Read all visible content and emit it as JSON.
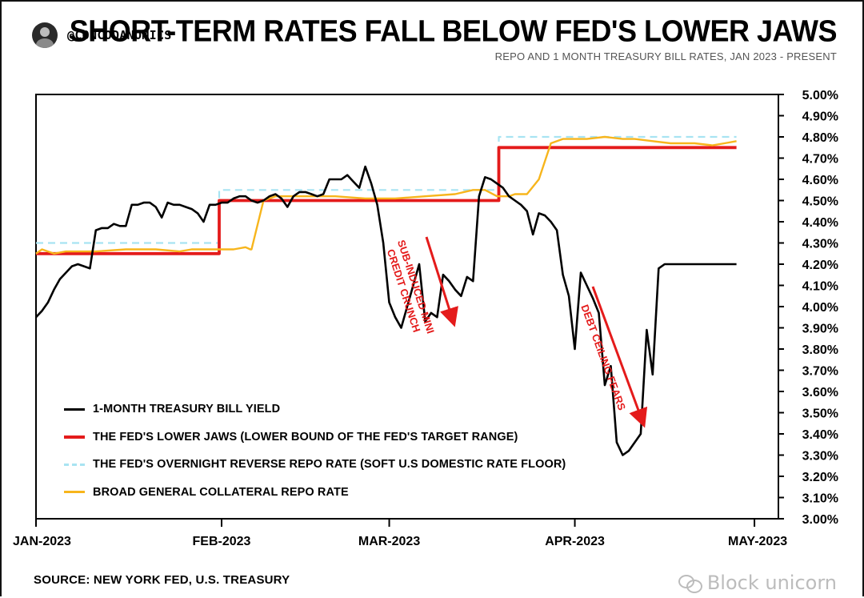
{
  "header": {
    "handle": "@CONCODANOMICS",
    "title": "SHORT-TERM RATES FALL BELOW FED'S LOWER JAWS",
    "subtitle": "REPO AND 1 MONTH TREASURY BILL RATES, JAN 2023 - PRESENT"
  },
  "footer": {
    "source": "SOURCE: NEW YORK FED, U.S. TREASURY",
    "watermark": "Block unicorn"
  },
  "chart_data": {
    "type": "line",
    "title": "SHORT-TERM RATES FALL BELOW FED'S LOWER JAWS",
    "subtitle": "REPO AND 1 MONTH TREASURY BILL RATES, JAN 2023 - PRESENT",
    "x_ticks": [
      {
        "label": "JAN-2023",
        "day": 0
      },
      {
        "label": "FEB-2023",
        "day": 31
      },
      {
        "label": "MAR-2023",
        "day": 59
      },
      {
        "label": "APR-2023",
        "day": 90
      },
      {
        "label": "MAY-2023",
        "day": 120
      }
    ],
    "xlim": [
      0,
      124
    ],
    "y_ticks": [
      "5.00%",
      "4.90%",
      "4.80%",
      "4.70%",
      "4.60%",
      "4.50%",
      "4.40%",
      "4.30%",
      "4.20%",
      "4.10%",
      "4.00%",
      "3.90%",
      "3.80%",
      "3.70%",
      "3.60%",
      "3.50%",
      "3.40%",
      "3.30%",
      "3.20%",
      "3.10%",
      "3.00%"
    ],
    "ylim": [
      3.0,
      5.0
    ],
    "y_axis_side": "right",
    "legend_position": "bottom-left",
    "series": [
      {
        "name": "1-MONTH TREASURY BILL YIELD",
        "color": "#000000",
        "style": "solid",
        "x": [
          0,
          1,
          2,
          3,
          4,
          5,
          6,
          7,
          8,
          9,
          10,
          11,
          12,
          13,
          14,
          15,
          16,
          17,
          18,
          19,
          20,
          21,
          22,
          23,
          24,
          25,
          26,
          27,
          28,
          29,
          30,
          31,
          32,
          33,
          34,
          35,
          36,
          37,
          38,
          39,
          40,
          41,
          42,
          43,
          44,
          45,
          46,
          47,
          48,
          49,
          50,
          51,
          52,
          53,
          54,
          55,
          56,
          57,
          58,
          59,
          60,
          61,
          62,
          63,
          64,
          65,
          66,
          67,
          68,
          69,
          70,
          71,
          72,
          73,
          74,
          75,
          76,
          77,
          78,
          79,
          80,
          81,
          82,
          83,
          84,
          85,
          86,
          87,
          88,
          89,
          90,
          91,
          92,
          93,
          94,
          95,
          96,
          97,
          98,
          99,
          100,
          101,
          102,
          103,
          104,
          105,
          106,
          107,
          108,
          109,
          110,
          111,
          112,
          113,
          114,
          115,
          116,
          117
        ],
        "values": [
          3.95,
          3.98,
          4.02,
          4.08,
          4.13,
          4.16,
          4.19,
          4.2,
          4.19,
          4.18,
          4.36,
          4.37,
          4.37,
          4.39,
          4.38,
          4.38,
          4.48,
          4.48,
          4.49,
          4.49,
          4.47,
          4.42,
          4.49,
          4.48,
          4.48,
          4.47,
          4.46,
          4.44,
          4.4,
          4.48,
          4.48,
          4.49,
          4.49,
          4.51,
          4.52,
          4.52,
          4.5,
          4.49,
          4.5,
          4.52,
          4.53,
          4.51,
          4.47,
          4.52,
          4.54,
          4.54,
          4.53,
          4.52,
          4.53,
          4.6,
          4.6,
          4.6,
          4.62,
          4.59,
          4.56,
          4.66,
          4.58,
          4.48,
          4.3,
          4.02,
          3.95,
          3.9,
          4.0,
          4.1,
          4.2,
          3.93,
          3.97,
          3.95,
          4.15,
          4.12,
          4.08,
          4.05,
          4.14,
          4.12,
          4.52,
          4.61,
          4.6,
          4.58,
          4.56,
          4.52,
          4.5,
          4.48,
          4.45,
          4.34,
          4.44,
          4.43,
          4.4,
          4.36,
          4.15,
          4.05,
          3.8,
          4.16,
          4.1,
          4.04,
          3.97,
          3.63,
          3.72,
          3.36,
          3.3,
          3.32,
          3.36,
          3.4,
          3.89,
          3.68,
          4.18,
          4.2,
          4.2,
          4.2,
          4.2,
          4.2,
          4.2,
          4.2,
          4.2,
          4.2,
          4.2,
          4.2,
          4.2,
          4.2
        ]
      },
      {
        "name": "THE FED'S LOWER JAWS (LOWER BOUND OF THE FED'S TARGET RANGE)",
        "color": "#e41b1b",
        "style": "solid",
        "x": [
          0,
          30.6,
          30.6,
          77.3,
          77.3,
          117
        ],
        "values": [
          4.25,
          4.25,
          4.5,
          4.5,
          4.75,
          4.75
        ]
      },
      {
        "name": "THE FED'S OVERNIGHT REVERSE REPO RATE (SOFT U.S DOMESTIC RATE FLOOR)",
        "color": "#a8e4f2",
        "style": "dashed",
        "x": [
          0,
          30.6,
          30.6,
          77.3,
          77.3,
          117
        ],
        "values": [
          4.3,
          4.3,
          4.55,
          4.55,
          4.8,
          4.8
        ]
      },
      {
        "name": "BROAD GENERAL COLLATERAL REPO RATE",
        "color": "#f7b51c",
        "style": "solid",
        "x": [
          0,
          1,
          2,
          3,
          5,
          10,
          15,
          20,
          24,
          26,
          30,
          31,
          33,
          35,
          35.8,
          36,
          38,
          40,
          45,
          50,
          55,
          60,
          65,
          70,
          73,
          75,
          77,
          79,
          80,
          82,
          84,
          86,
          88,
          90,
          92,
          95,
          98,
          100,
          103,
          106,
          110,
          113,
          115,
          117
        ],
        "values": [
          4.25,
          4.27,
          4.26,
          4.25,
          4.26,
          4.26,
          4.27,
          4.27,
          4.26,
          4.27,
          4.27,
          4.27,
          4.27,
          4.28,
          4.27,
          4.27,
          4.5,
          4.52,
          4.52,
          4.52,
          4.51,
          4.51,
          4.52,
          4.53,
          4.55,
          4.55,
          4.52,
          4.52,
          4.53,
          4.53,
          4.6,
          4.77,
          4.79,
          4.79,
          4.79,
          4.8,
          4.79,
          4.79,
          4.78,
          4.77,
          4.77,
          4.76,
          4.77,
          4.78
        ]
      }
    ]
  },
  "annotations": [
    {
      "text_line1": "SUB-INDUCED MINI",
      "text_line2": "CREDIT CRUNCH"
    },
    {
      "text_line1": "DEBT CEILING FEARS",
      "text_line2": ""
    }
  ],
  "colors": {
    "background": "#ffffff",
    "arrow": "#e41b1b"
  }
}
